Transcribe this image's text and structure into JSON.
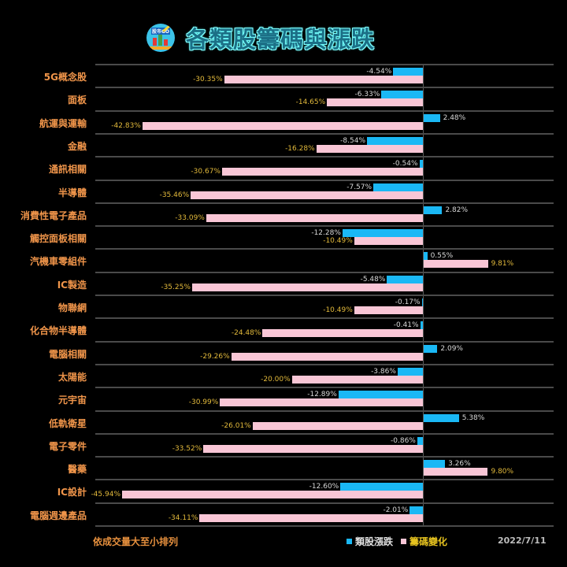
{
  "header": {
    "title": "各類股籌碼與漲跌",
    "logo_text": "股市GO"
  },
  "colors": {
    "background": "#000000",
    "category_label": "#f0954a",
    "sector_change_bar": "#1ab8f5",
    "chip_change_bar": "#f9c6d6",
    "sector_change_label": "#d8d8d8",
    "chip_change_label": "#e2b93b",
    "gridline": "#4a4a4a"
  },
  "footer": {
    "note": "依成交量大至小排列",
    "legend": [
      {
        "label": "類股漲跌",
        "color": "#1ab8f5",
        "text_color": "#e0e0e0"
      },
      {
        "label": "籌碼變化",
        "color": "#f9c6d6",
        "text_color": "#e6c21f"
      }
    ],
    "date": "2022/7/11"
  },
  "chart_data": {
    "type": "bar",
    "orientation": "horizontal",
    "title": "各類股籌碼與漲跌",
    "xlabel": "",
    "ylabel": "",
    "xlim": [
      -46,
      20
    ],
    "grid": true,
    "legend_position": "bottom",
    "annotation": "依成交量大至小排列",
    "categories": [
      "5G概念股",
      "面板",
      "航運與運輸",
      "金融",
      "通訊相關",
      "半導體",
      "消費性電子產品",
      "觸控面板相關",
      "汽機車零組件",
      "IC製造",
      "物聯網",
      "化合物半導體",
      "電腦相關",
      "太陽能",
      "元宇宙",
      "低軌衛星",
      "電子零件",
      "醫藥",
      "IC設計",
      "電腦週邊產品"
    ],
    "series": [
      {
        "name": "類股漲跌",
        "values": [
          -4.54,
          -6.33,
          2.48,
          -8.54,
          -0.54,
          -7.57,
          2.82,
          -12.28,
          0.55,
          -5.48,
          -0.17,
          -0.41,
          2.09,
          -3.86,
          -12.89,
          5.38,
          -0.86,
          3.26,
          -12.6,
          -2.01
        ],
        "labels": [
          "-4.54%",
          "-6.33%",
          "2.48%",
          "-8.54%",
          "-0.54%",
          "-7.57%",
          "2.82%",
          "-12.28%",
          "0.55%",
          "-5.48%",
          "-0.17%",
          "-0.41%",
          "2.09%",
          "-3.86%",
          "-12.89%",
          "5.38%",
          "-0.86%",
          "3.26%",
          "-12.60%",
          "-2.01%"
        ]
      },
      {
        "name": "籌碼變化",
        "values": [
          -30.35,
          -14.65,
          -42.83,
          -16.28,
          -30.67,
          -35.46,
          -33.09,
          -10.49,
          9.81,
          -35.25,
          -10.49,
          -24.48,
          -29.26,
          -20.0,
          -30.99,
          -26.01,
          -33.52,
          9.8,
          -45.94,
          -34.11
        ],
        "labels": [
          "-30.35%",
          "-14.65%",
          "-42.83%",
          "-16.28%",
          "-30.67%",
          "-35.46%",
          "-33.09%",
          "-10.49%",
          "9.81%",
          "-35.25%",
          "-10.49%",
          "-24.48%",
          "-29.26%",
          "-20.00%",
          "-30.99%",
          "-26.01%",
          "-33.52%",
          "9.80%",
          "-45.94%",
          "-34.11%"
        ]
      }
    ],
    "date": "2022/7/11"
  }
}
